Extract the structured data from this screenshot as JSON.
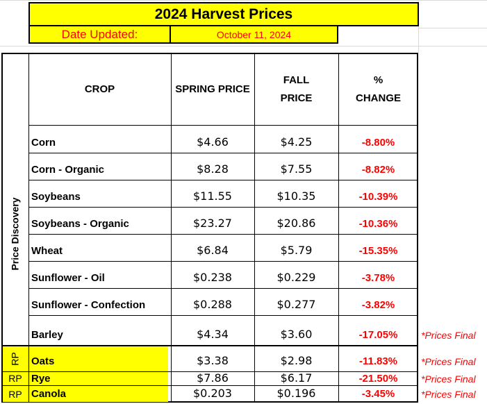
{
  "title": "2024 Harvest Prices",
  "date_label": "Date Updated:",
  "date_value": "October 11, 2024",
  "side_label": "Price Discovery",
  "headers": {
    "crop": "CROP",
    "spring": "SPRING PRICE",
    "fall_line1": "FALL",
    "fall_line2": "PRICE",
    "change_line1": "%",
    "change_line2": "CHANGE"
  },
  "rows": [
    {
      "crop": "Corn",
      "spring": "$4.66",
      "fall": "$4.25",
      "change": "-8.80%",
      "note": "",
      "rp": ""
    },
    {
      "crop": "Corn - Organic",
      "spring": "$8.28",
      "fall": "$7.55",
      "change": "-8.82%",
      "note": "",
      "rp": ""
    },
    {
      "crop": "Soybeans",
      "spring": "$11.55",
      "fall": "$10.35",
      "change": "-10.39%",
      "note": "",
      "rp": ""
    },
    {
      "crop": "Soybeans - Organic",
      "spring": "$23.27",
      "fall": "$20.86",
      "change": "-10.36%",
      "note": "",
      "rp": ""
    },
    {
      "crop": "Wheat",
      "spring": "$6.84",
      "fall": "$5.79",
      "change": "-15.35%",
      "note": "",
      "rp": ""
    },
    {
      "crop": "Sunflower - Oil",
      "spring": "$0.238",
      "fall": "$0.229",
      "change": "-3.78%",
      "note": "",
      "rp": ""
    },
    {
      "crop": "Sunflower - Confection",
      "spring": "$0.288",
      "fall": "$0.277",
      "change": "-3.82%",
      "note": "",
      "rp": ""
    },
    {
      "crop": "Barley",
      "spring": "$4.34",
      "fall": "$3.60",
      "change": "-17.05%",
      "note": "*Prices Final",
      "rp": ""
    },
    {
      "crop": "Oats",
      "spring": "$3.38",
      "fall": "$2.98",
      "change": "-11.83%",
      "note": "*Prices Final",
      "rp": "RP"
    },
    {
      "crop": "Rye",
      "spring": "$7.86",
      "fall": "$6.17",
      "change": "-21.50%",
      "note": "*Prices Final",
      "rp": "RP"
    },
    {
      "crop": "Canola",
      "spring": "$0.203",
      "fall": "$0.196",
      "change": "-3.45%",
      "note": "*Prices Final",
      "rp": "RP"
    }
  ],
  "colors": {
    "highlight": "#ffff00",
    "negative": "#ff0000"
  }
}
